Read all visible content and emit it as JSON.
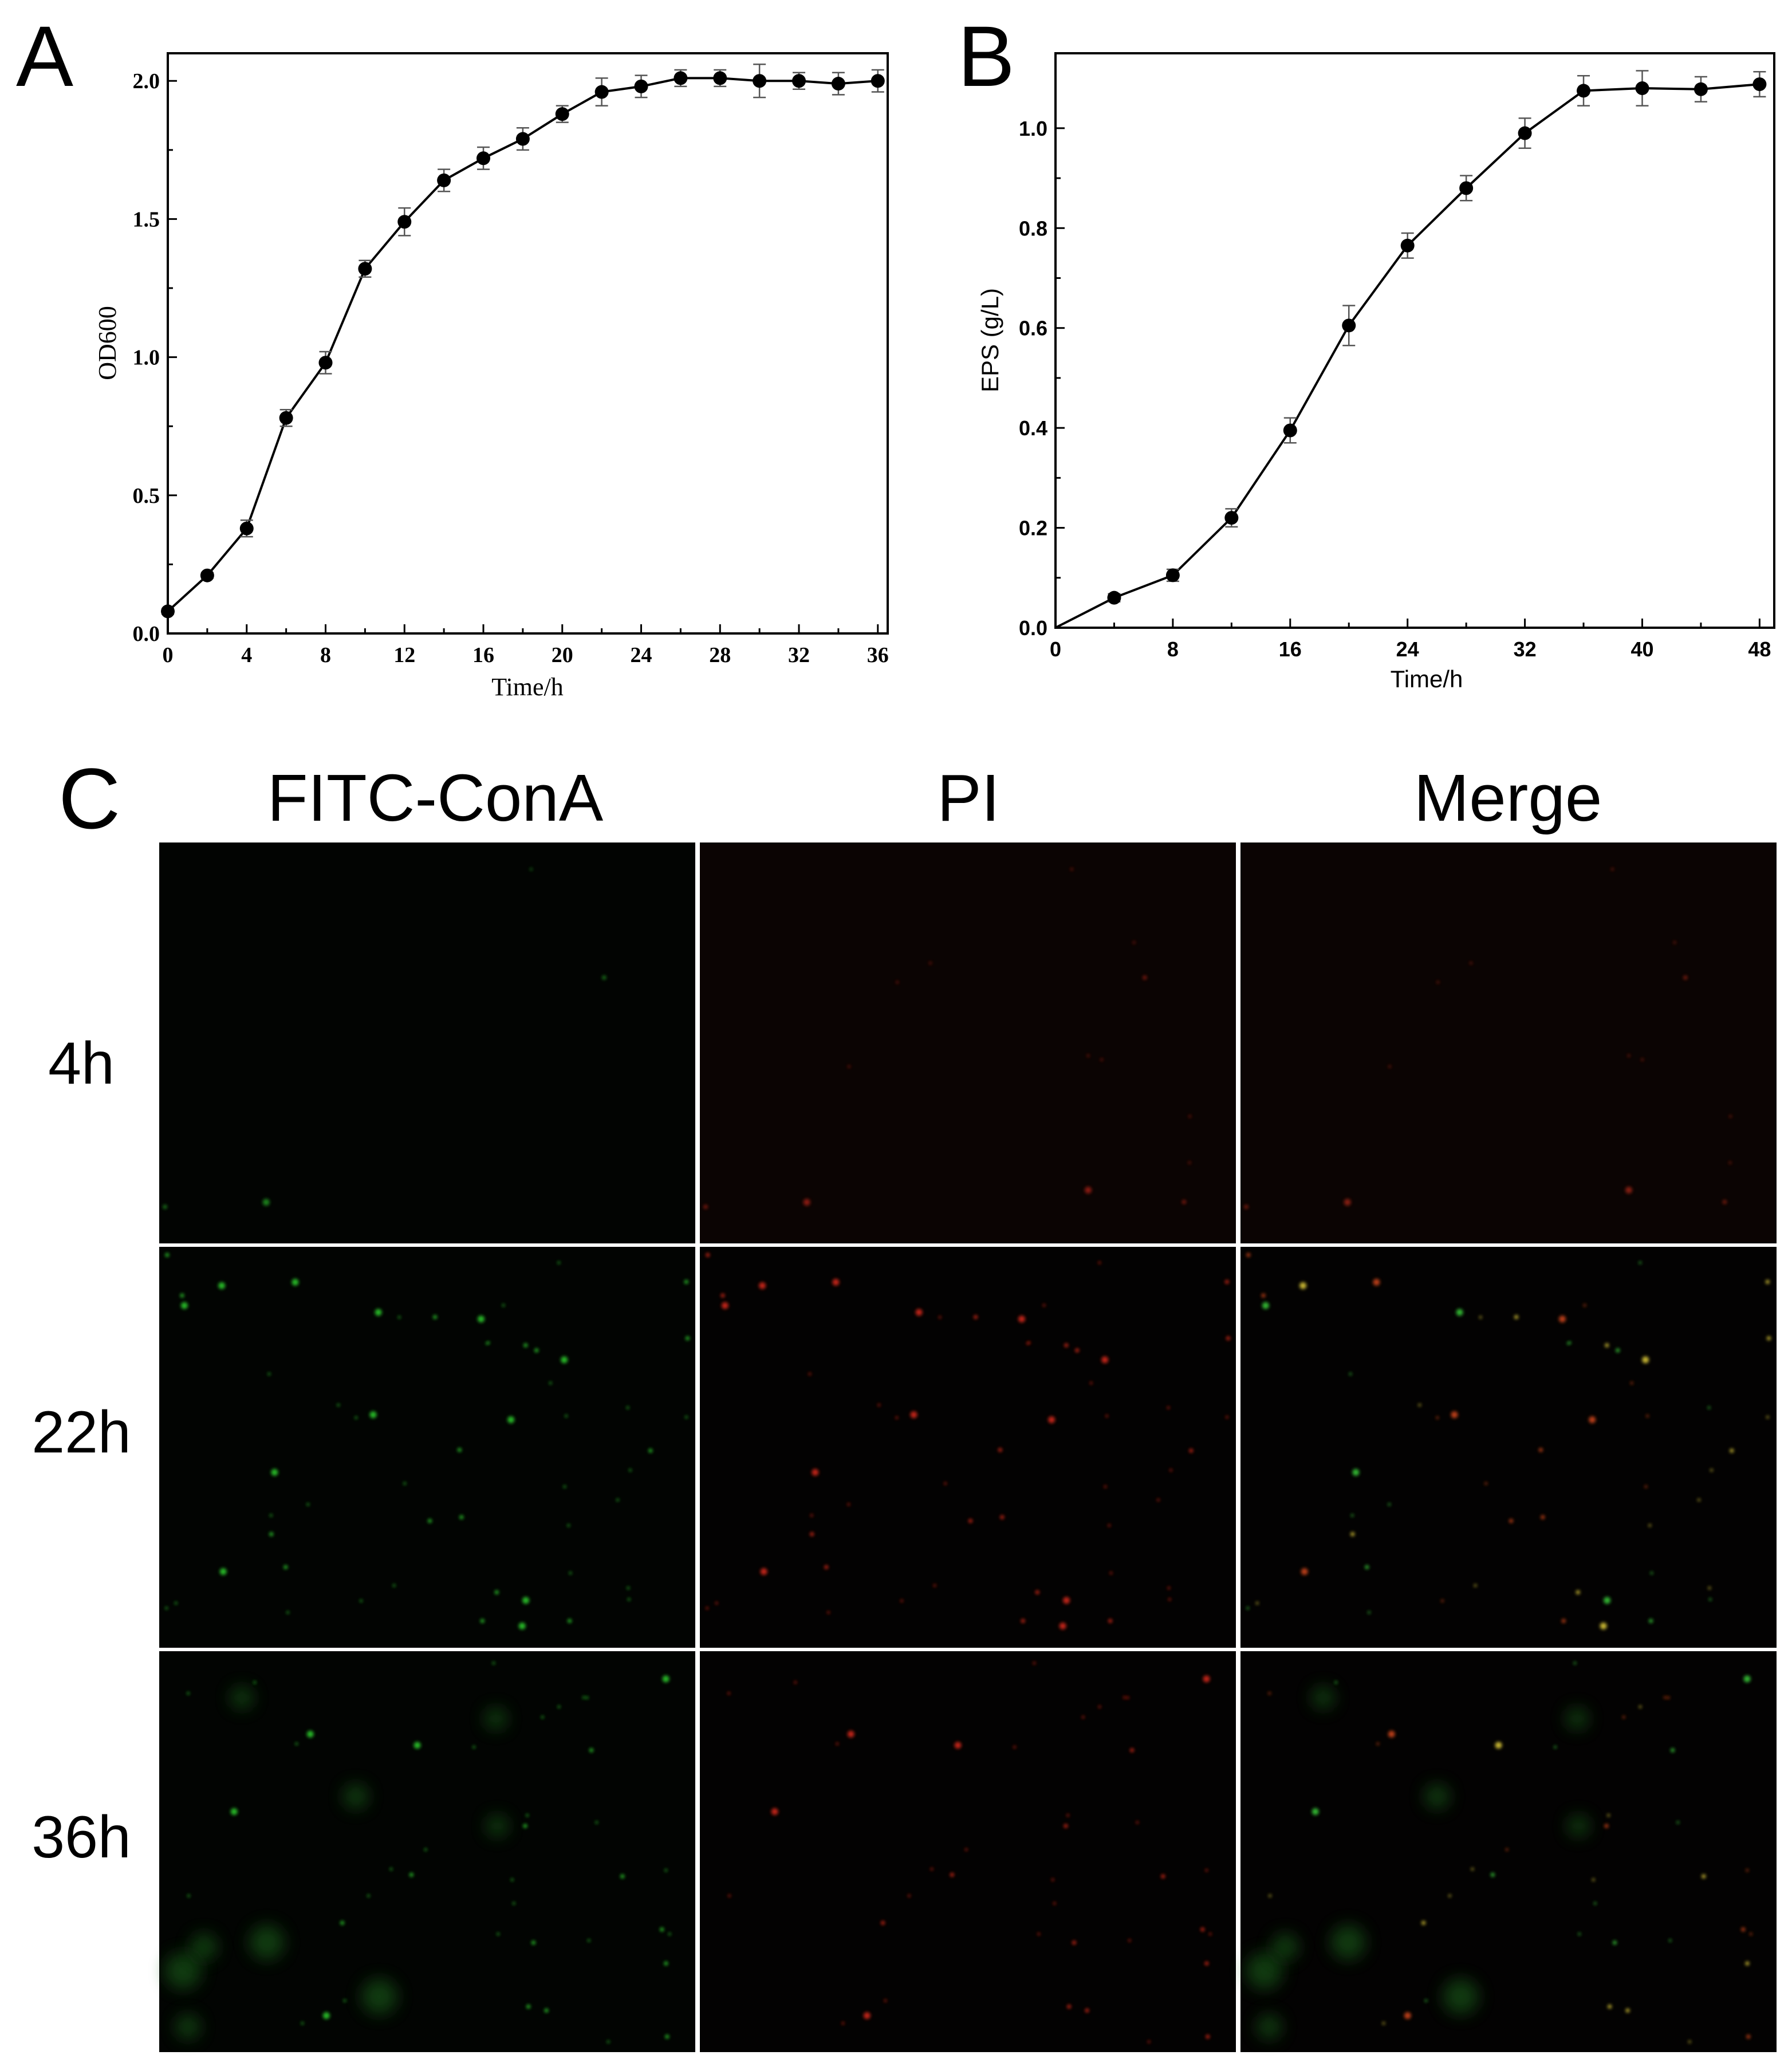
{
  "panels": {
    "a": "A",
    "b": "B",
    "c": "C"
  },
  "chart_data": [
    {
      "type": "line",
      "panel": "A",
      "xlabel": "Time/h",
      "ylabel": "OD600",
      "xlim": [
        0,
        36.5
      ],
      "ylim": [
        0,
        2.1
      ],
      "xticks": [
        0,
        4,
        8,
        12,
        16,
        20,
        24,
        28,
        32,
        36
      ],
      "yticks": [
        0.0,
        0.5,
        1.0,
        1.5,
        2.0
      ],
      "xtick_labels": [
        "0",
        "4",
        "8",
        "12",
        "16",
        "20",
        "24",
        "28",
        "32",
        "36"
      ],
      "ytick_labels": [
        "0.0",
        "0.5",
        "1.0",
        "1.5",
        "2.0"
      ],
      "x": [
        0,
        2,
        4,
        6,
        8,
        10,
        12,
        14,
        16,
        18,
        20,
        22,
        24,
        26,
        28,
        30,
        32,
        34,
        36
      ],
      "y": [
        0.08,
        0.21,
        0.38,
        0.78,
        0.98,
        1.32,
        1.49,
        1.64,
        1.72,
        1.79,
        1.88,
        1.96,
        1.98,
        2.01,
        2.01,
        2.0,
        2.0,
        1.99,
        2.0
      ],
      "err": [
        0.01,
        0.01,
        0.03,
        0.03,
        0.04,
        0.03,
        0.05,
        0.04,
        0.04,
        0.04,
        0.03,
        0.05,
        0.04,
        0.03,
        0.03,
        0.06,
        0.03,
        0.04,
        0.04
      ],
      "grid": false
    },
    {
      "type": "line",
      "panel": "B",
      "xlabel": "Time/h",
      "ylabel": "EPS (g/L)",
      "xlim": [
        0,
        49
      ],
      "ylim": [
        0,
        1.15
      ],
      "xticks": [
        0,
        8,
        16,
        24,
        32,
        40,
        48
      ],
      "yticks": [
        0.0,
        0.2,
        0.4,
        0.6,
        0.8,
        1.0
      ],
      "xtick_labels": [
        "0",
        "8",
        "16",
        "24",
        "32",
        "40",
        "48"
      ],
      "ytick_labels": [
        "0.0",
        "0.2",
        "0.4",
        "0.6",
        "0.8",
        "1.0"
      ],
      "x": [
        0,
        4,
        8,
        12,
        16,
        20,
        24,
        28,
        32,
        36,
        40,
        44,
        48
      ],
      "y": [
        0.0,
        0.06,
        0.105,
        0.22,
        0.395,
        0.605,
        0.765,
        0.88,
        0.99,
        1.075,
        1.08,
        1.078,
        1.088
      ],
      "err": [
        0.0,
        0.008,
        0.012,
        0.018,
        0.025,
        0.04,
        0.025,
        0.025,
        0.03,
        0.03,
        0.035,
        0.025,
        0.025
      ],
      "grid": false
    }
  ],
  "micrographs": {
    "columns": [
      "FITC-ConA",
      "PI",
      "Merge"
    ],
    "rows": [
      "4h",
      "22h",
      "36h"
    ]
  }
}
